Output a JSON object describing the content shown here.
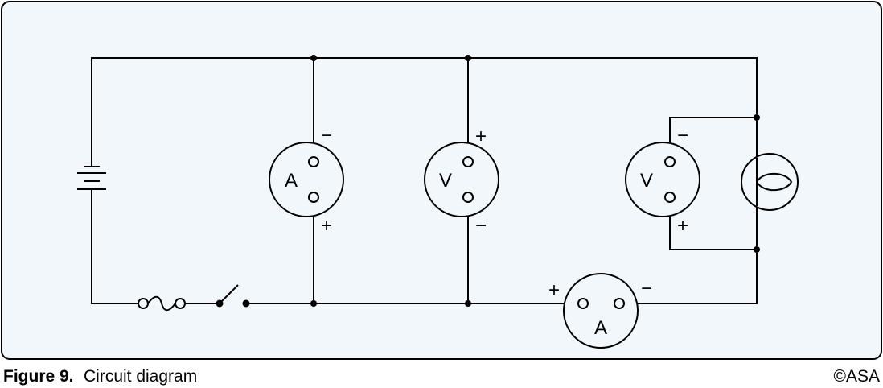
{
  "figure": {
    "number": "Figure 9.",
    "title": "Circuit diagram",
    "copyright": "©ASA"
  },
  "colors": {
    "background": "#f2f7fc",
    "border": "#000000",
    "wire": "#000000"
  },
  "meters": {
    "ammeter_left": {
      "letter": "A",
      "top_sign": "−",
      "bottom_sign": "+"
    },
    "voltmeter_middle": {
      "letter": "V",
      "top_sign": "+",
      "bottom_sign": "−"
    },
    "voltmeter_right": {
      "letter": "V",
      "top_sign": "−",
      "bottom_sign": "+"
    },
    "ammeter_bottom": {
      "letter": "A",
      "left_sign": "+",
      "right_sign": "−"
    }
  },
  "components": {
    "battery": "battery-icon",
    "fuse": "fuse-icon",
    "switch": "switch-icon",
    "lamp": "lamp-icon"
  }
}
